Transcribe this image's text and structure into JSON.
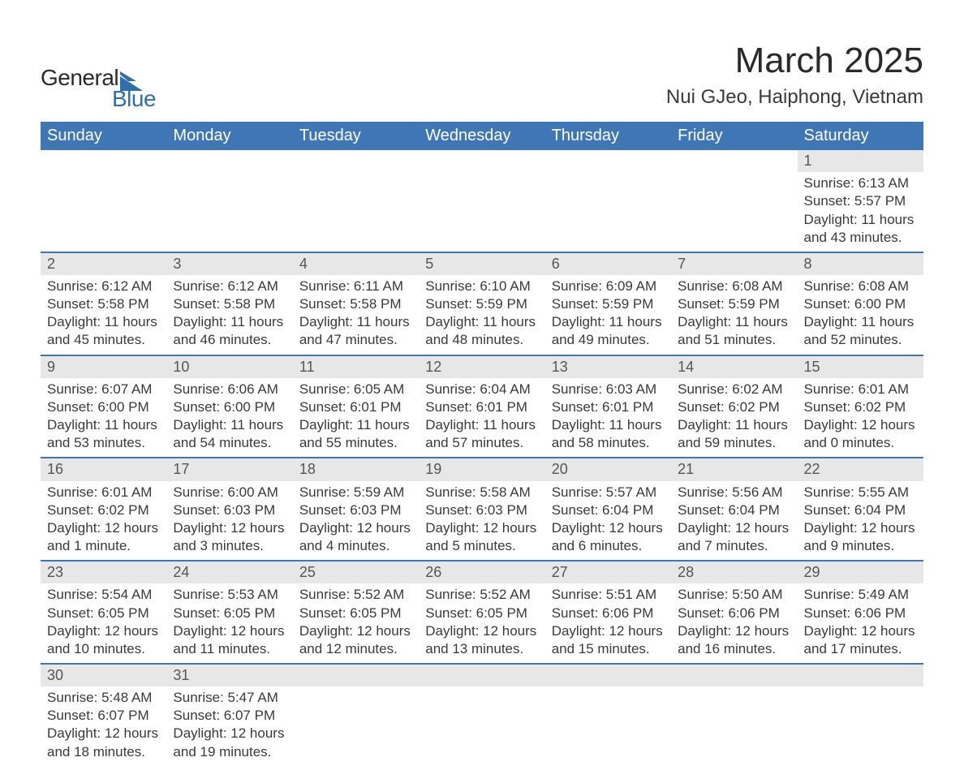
{
  "brand": {
    "text1": "General",
    "text2": "Blue"
  },
  "title": {
    "month": "March 2025",
    "location": "Nui GJeo, Haiphong, Vietnam"
  },
  "colors": {
    "header_bg": "#3f76b5",
    "header_text": "#ffffff",
    "daynum_bg": "#e7e7e7",
    "row_border": "#3f76b5",
    "body_text": "#3a3a3a",
    "brand_blue": "#2f6fab",
    "brand_dark": "#2a2a2a",
    "page_bg": "#ffffff"
  },
  "typography": {
    "month_fontsize": 44,
    "location_fontsize": 24,
    "dayheader_fontsize": 20,
    "daynum_fontsize": 18,
    "detail_fontsize": 17,
    "font_family": "Arial"
  },
  "layout": {
    "columns": 7,
    "rows": 6
  },
  "day_headers": [
    "Sunday",
    "Monday",
    "Tuesday",
    "Wednesday",
    "Thursday",
    "Friday",
    "Saturday"
  ],
  "weeks": [
    [
      null,
      null,
      null,
      null,
      null,
      null,
      {
        "n": "1",
        "sunrise": "6:13 AM",
        "sunset": "5:57 PM",
        "daylight": "11 hours and 43 minutes."
      }
    ],
    [
      {
        "n": "2",
        "sunrise": "6:12 AM",
        "sunset": "5:58 PM",
        "daylight": "11 hours and 45 minutes."
      },
      {
        "n": "3",
        "sunrise": "6:12 AM",
        "sunset": "5:58 PM",
        "daylight": "11 hours and 46 minutes."
      },
      {
        "n": "4",
        "sunrise": "6:11 AM",
        "sunset": "5:58 PM",
        "daylight": "11 hours and 47 minutes."
      },
      {
        "n": "5",
        "sunrise": "6:10 AM",
        "sunset": "5:59 PM",
        "daylight": "11 hours and 48 minutes."
      },
      {
        "n": "6",
        "sunrise": "6:09 AM",
        "sunset": "5:59 PM",
        "daylight": "11 hours and 49 minutes."
      },
      {
        "n": "7",
        "sunrise": "6:08 AM",
        "sunset": "5:59 PM",
        "daylight": "11 hours and 51 minutes."
      },
      {
        "n": "8",
        "sunrise": "6:08 AM",
        "sunset": "6:00 PM",
        "daylight": "11 hours and 52 minutes."
      }
    ],
    [
      {
        "n": "9",
        "sunrise": "6:07 AM",
        "sunset": "6:00 PM",
        "daylight": "11 hours and 53 minutes."
      },
      {
        "n": "10",
        "sunrise": "6:06 AM",
        "sunset": "6:00 PM",
        "daylight": "11 hours and 54 minutes."
      },
      {
        "n": "11",
        "sunrise": "6:05 AM",
        "sunset": "6:01 PM",
        "daylight": "11 hours and 55 minutes."
      },
      {
        "n": "12",
        "sunrise": "6:04 AM",
        "sunset": "6:01 PM",
        "daylight": "11 hours and 57 minutes."
      },
      {
        "n": "13",
        "sunrise": "6:03 AM",
        "sunset": "6:01 PM",
        "daylight": "11 hours and 58 minutes."
      },
      {
        "n": "14",
        "sunrise": "6:02 AM",
        "sunset": "6:02 PM",
        "daylight": "11 hours and 59 minutes."
      },
      {
        "n": "15",
        "sunrise": "6:01 AM",
        "sunset": "6:02 PM",
        "daylight": "12 hours and 0 minutes."
      }
    ],
    [
      {
        "n": "16",
        "sunrise": "6:01 AM",
        "sunset": "6:02 PM",
        "daylight": "12 hours and 1 minute."
      },
      {
        "n": "17",
        "sunrise": "6:00 AM",
        "sunset": "6:03 PM",
        "daylight": "12 hours and 3 minutes."
      },
      {
        "n": "18",
        "sunrise": "5:59 AM",
        "sunset": "6:03 PM",
        "daylight": "12 hours and 4 minutes."
      },
      {
        "n": "19",
        "sunrise": "5:58 AM",
        "sunset": "6:03 PM",
        "daylight": "12 hours and 5 minutes."
      },
      {
        "n": "20",
        "sunrise": "5:57 AM",
        "sunset": "6:04 PM",
        "daylight": "12 hours and 6 minutes."
      },
      {
        "n": "21",
        "sunrise": "5:56 AM",
        "sunset": "6:04 PM",
        "daylight": "12 hours and 7 minutes."
      },
      {
        "n": "22",
        "sunrise": "5:55 AM",
        "sunset": "6:04 PM",
        "daylight": "12 hours and 9 minutes."
      }
    ],
    [
      {
        "n": "23",
        "sunrise": "5:54 AM",
        "sunset": "6:05 PM",
        "daylight": "12 hours and 10 minutes."
      },
      {
        "n": "24",
        "sunrise": "5:53 AM",
        "sunset": "6:05 PM",
        "daylight": "12 hours and 11 minutes."
      },
      {
        "n": "25",
        "sunrise": "5:52 AM",
        "sunset": "6:05 PM",
        "daylight": "12 hours and 12 minutes."
      },
      {
        "n": "26",
        "sunrise": "5:52 AM",
        "sunset": "6:05 PM",
        "daylight": "12 hours and 13 minutes."
      },
      {
        "n": "27",
        "sunrise": "5:51 AM",
        "sunset": "6:06 PM",
        "daylight": "12 hours and 15 minutes."
      },
      {
        "n": "28",
        "sunrise": "5:50 AM",
        "sunset": "6:06 PM",
        "daylight": "12 hours and 16 minutes."
      },
      {
        "n": "29",
        "sunrise": "5:49 AM",
        "sunset": "6:06 PM",
        "daylight": "12 hours and 17 minutes."
      }
    ],
    [
      {
        "n": "30",
        "sunrise": "5:48 AM",
        "sunset": "6:07 PM",
        "daylight": "12 hours and 18 minutes."
      },
      {
        "n": "31",
        "sunrise": "5:47 AM",
        "sunset": "6:07 PM",
        "daylight": "12 hours and 19 minutes."
      },
      null,
      null,
      null,
      null,
      null
    ]
  ],
  "labels": {
    "sunrise": "Sunrise:",
    "sunset": "Sunset:",
    "daylight": "Daylight:"
  }
}
